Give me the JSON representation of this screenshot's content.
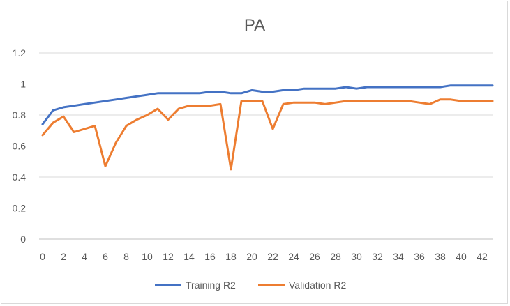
{
  "chart_data": {
    "type": "line",
    "title": "PA",
    "xlabel": "",
    "ylabel": "",
    "ylim": [
      0,
      1.2
    ],
    "y_ticks": [
      "0",
      "0.2",
      "0.4",
      "0.6",
      "0.8",
      "1",
      "1.2"
    ],
    "x_ticks": [
      "0",
      "2",
      "4",
      "6",
      "8",
      "10",
      "12",
      "14",
      "16",
      "18",
      "20",
      "22",
      "24",
      "26",
      "28",
      "30",
      "32",
      "34",
      "36",
      "38",
      "40",
      "42"
    ],
    "x": [
      0,
      1,
      2,
      3,
      4,
      5,
      6,
      7,
      8,
      9,
      10,
      11,
      12,
      13,
      14,
      15,
      16,
      17,
      18,
      19,
      20,
      21,
      22,
      23,
      24,
      25,
      26,
      27,
      28,
      29,
      30,
      31,
      32,
      33,
      34,
      35,
      36,
      37,
      38,
      39,
      40,
      41,
      42,
      43
    ],
    "grid": true,
    "legend_position": "bottom",
    "series": [
      {
        "name": "Training R2",
        "color": "#4472C4",
        "values": [
          0.74,
          0.83,
          0.85,
          0.86,
          0.87,
          0.88,
          0.89,
          0.9,
          0.91,
          0.92,
          0.93,
          0.94,
          0.94,
          0.94,
          0.94,
          0.94,
          0.95,
          0.95,
          0.94,
          0.94,
          0.96,
          0.95,
          0.95,
          0.96,
          0.96,
          0.97,
          0.97,
          0.97,
          0.97,
          0.98,
          0.97,
          0.98,
          0.98,
          0.98,
          0.98,
          0.98,
          0.98,
          0.98,
          0.98,
          0.99,
          0.99,
          0.99,
          0.99,
          0.99
        ]
      },
      {
        "name": "Validation R2",
        "color": "#ED7D31",
        "values": [
          0.67,
          0.75,
          0.79,
          0.69,
          0.71,
          0.73,
          0.47,
          0.62,
          0.73,
          0.77,
          0.8,
          0.84,
          0.77,
          0.84,
          0.86,
          0.86,
          0.86,
          0.87,
          0.45,
          0.89,
          0.89,
          0.89,
          0.71,
          0.87,
          0.88,
          0.88,
          0.88,
          0.87,
          0.88,
          0.89,
          0.89,
          0.89,
          0.89,
          0.89,
          0.89,
          0.89,
          0.88,
          0.87,
          0.9,
          0.9,
          0.89,
          0.89,
          0.89,
          0.89
        ]
      }
    ]
  }
}
